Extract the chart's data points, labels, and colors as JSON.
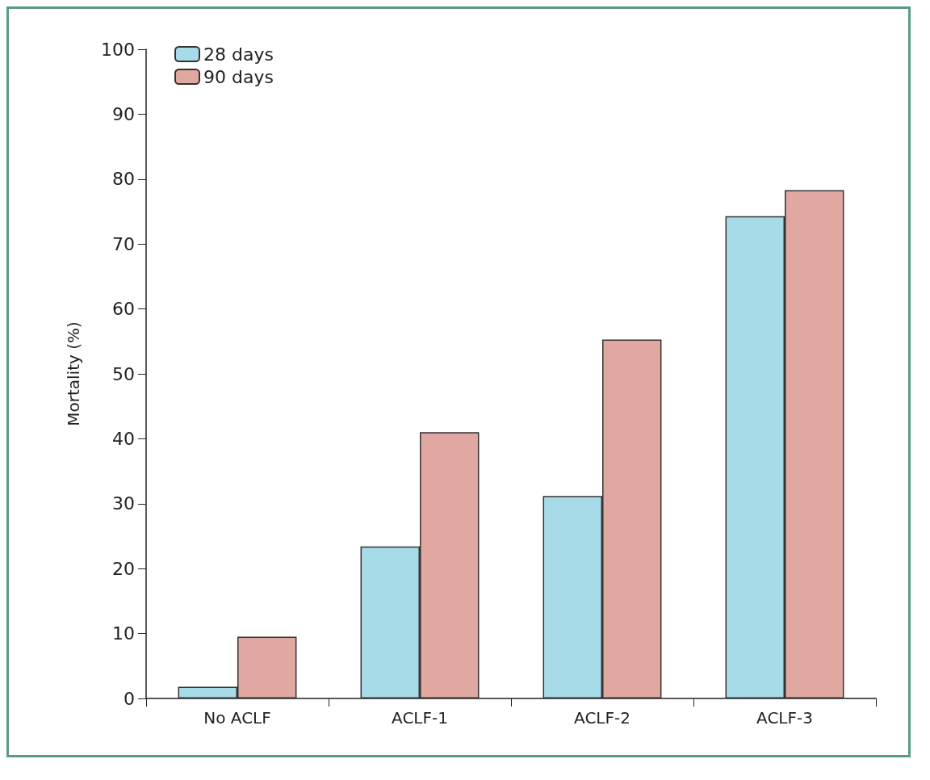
{
  "chart_data": {
    "type": "bar",
    "ylabel": "Mortality (%)",
    "categories": [
      "No ACLF",
      "ACLF-1",
      "ACLF-2",
      "ACLF-3"
    ],
    "series": [
      {
        "name": "28 days",
        "color": "#a8dbe8",
        "values": [
          1.8,
          23.4,
          31.2,
          74.3
        ]
      },
      {
        "name": "90 days",
        "color": "#e0a8a0",
        "values": [
          9.5,
          41,
          55.3,
          78.3
        ]
      }
    ],
    "ylim": [
      0,
      100
    ],
    "yticks": [
      0,
      10,
      20,
      30,
      40,
      50,
      60,
      70,
      80,
      90,
      100
    ],
    "grid": false,
    "legend": "top left"
  }
}
